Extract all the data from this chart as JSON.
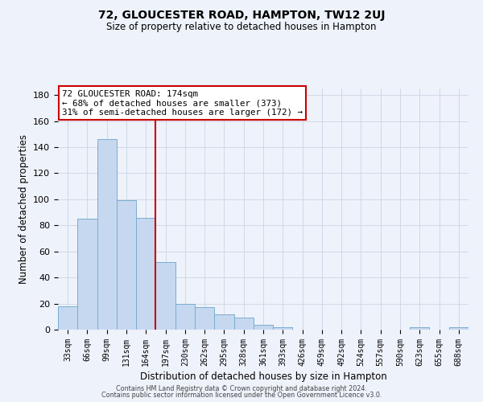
{
  "title": "72, GLOUCESTER ROAD, HAMPTON, TW12 2UJ",
  "subtitle": "Size of property relative to detached houses in Hampton",
  "xlabel": "Distribution of detached houses by size in Hampton",
  "ylabel": "Number of detached properties",
  "bar_labels": [
    "33sqm",
    "66sqm",
    "99sqm",
    "131sqm",
    "164sqm",
    "197sqm",
    "230sqm",
    "262sqm",
    "295sqm",
    "328sqm",
    "361sqm",
    "393sqm",
    "426sqm",
    "459sqm",
    "492sqm",
    "524sqm",
    "557sqm",
    "590sqm",
    "623sqm",
    "655sqm",
    "688sqm"
  ],
  "bar_heights": [
    18,
    85,
    146,
    99,
    86,
    52,
    20,
    17,
    12,
    9,
    4,
    2,
    0,
    0,
    0,
    0,
    0,
    0,
    2,
    0,
    2
  ],
  "bar_color": "#c5d8f0",
  "bar_edge_color": "#7aadcf",
  "vline_x": 4.0,
  "vline_color": "#cc0000",
  "ylim": [
    0,
    185
  ],
  "yticks": [
    0,
    20,
    40,
    60,
    80,
    100,
    120,
    140,
    160,
    180
  ],
  "annotation_title": "72 GLOUCESTER ROAD: 174sqm",
  "annotation_line1": "← 68% of detached houses are smaller (373)",
  "annotation_line2": "31% of semi-detached houses are larger (172) →",
  "annotation_box_color": "#ffffff",
  "annotation_box_edge": "#cc0000",
  "grid_color": "#d0d8e8",
  "background_color": "#eef2fa",
  "footer1": "Contains HM Land Registry data © Crown copyright and database right 2024.",
  "footer2": "Contains public sector information licensed under the Open Government Licence v3.0."
}
